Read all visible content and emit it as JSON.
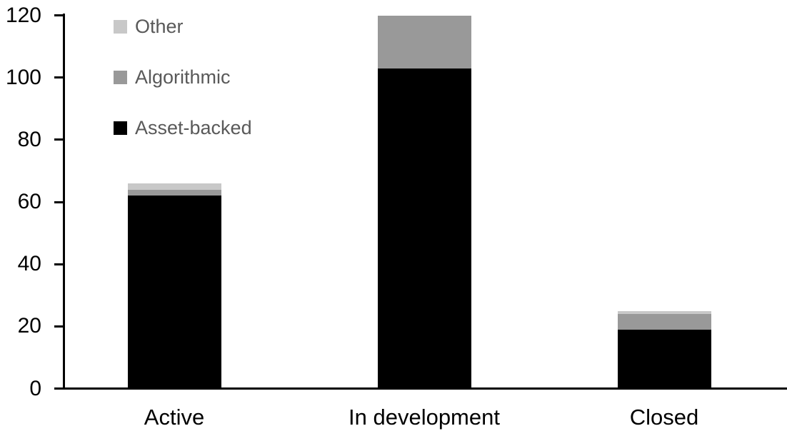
{
  "chart_data": {
    "type": "bar",
    "stacked": true,
    "title": "",
    "xlabel": "",
    "ylabel": "",
    "categories": [
      "Active",
      "In development",
      "Closed"
    ],
    "series": [
      {
        "name": "Asset-backed",
        "color": "#000000",
        "values": [
          62,
          103,
          19
        ]
      },
      {
        "name": "Algorithmic",
        "color": "#999999",
        "values": [
          2,
          17,
          5
        ]
      },
      {
        "name": "Other",
        "color": "#c8c8c8",
        "values": [
          2,
          0,
          1
        ]
      }
    ],
    "totals": [
      66,
      120,
      25
    ],
    "y_axis": {
      "min": 0,
      "max": 120,
      "tick_interval": 20,
      "ticks": [
        0,
        20,
        40,
        60,
        80,
        100,
        120
      ]
    },
    "grid": false,
    "legend": {
      "position": "top-left",
      "order": [
        "Other",
        "Algorithmic",
        "Asset-backed"
      ],
      "text_color": "#595959"
    },
    "colors": {
      "background": "#ffffff",
      "axis": "#000000",
      "tick_label": "#000000",
      "category_label": "#000000"
    }
  }
}
